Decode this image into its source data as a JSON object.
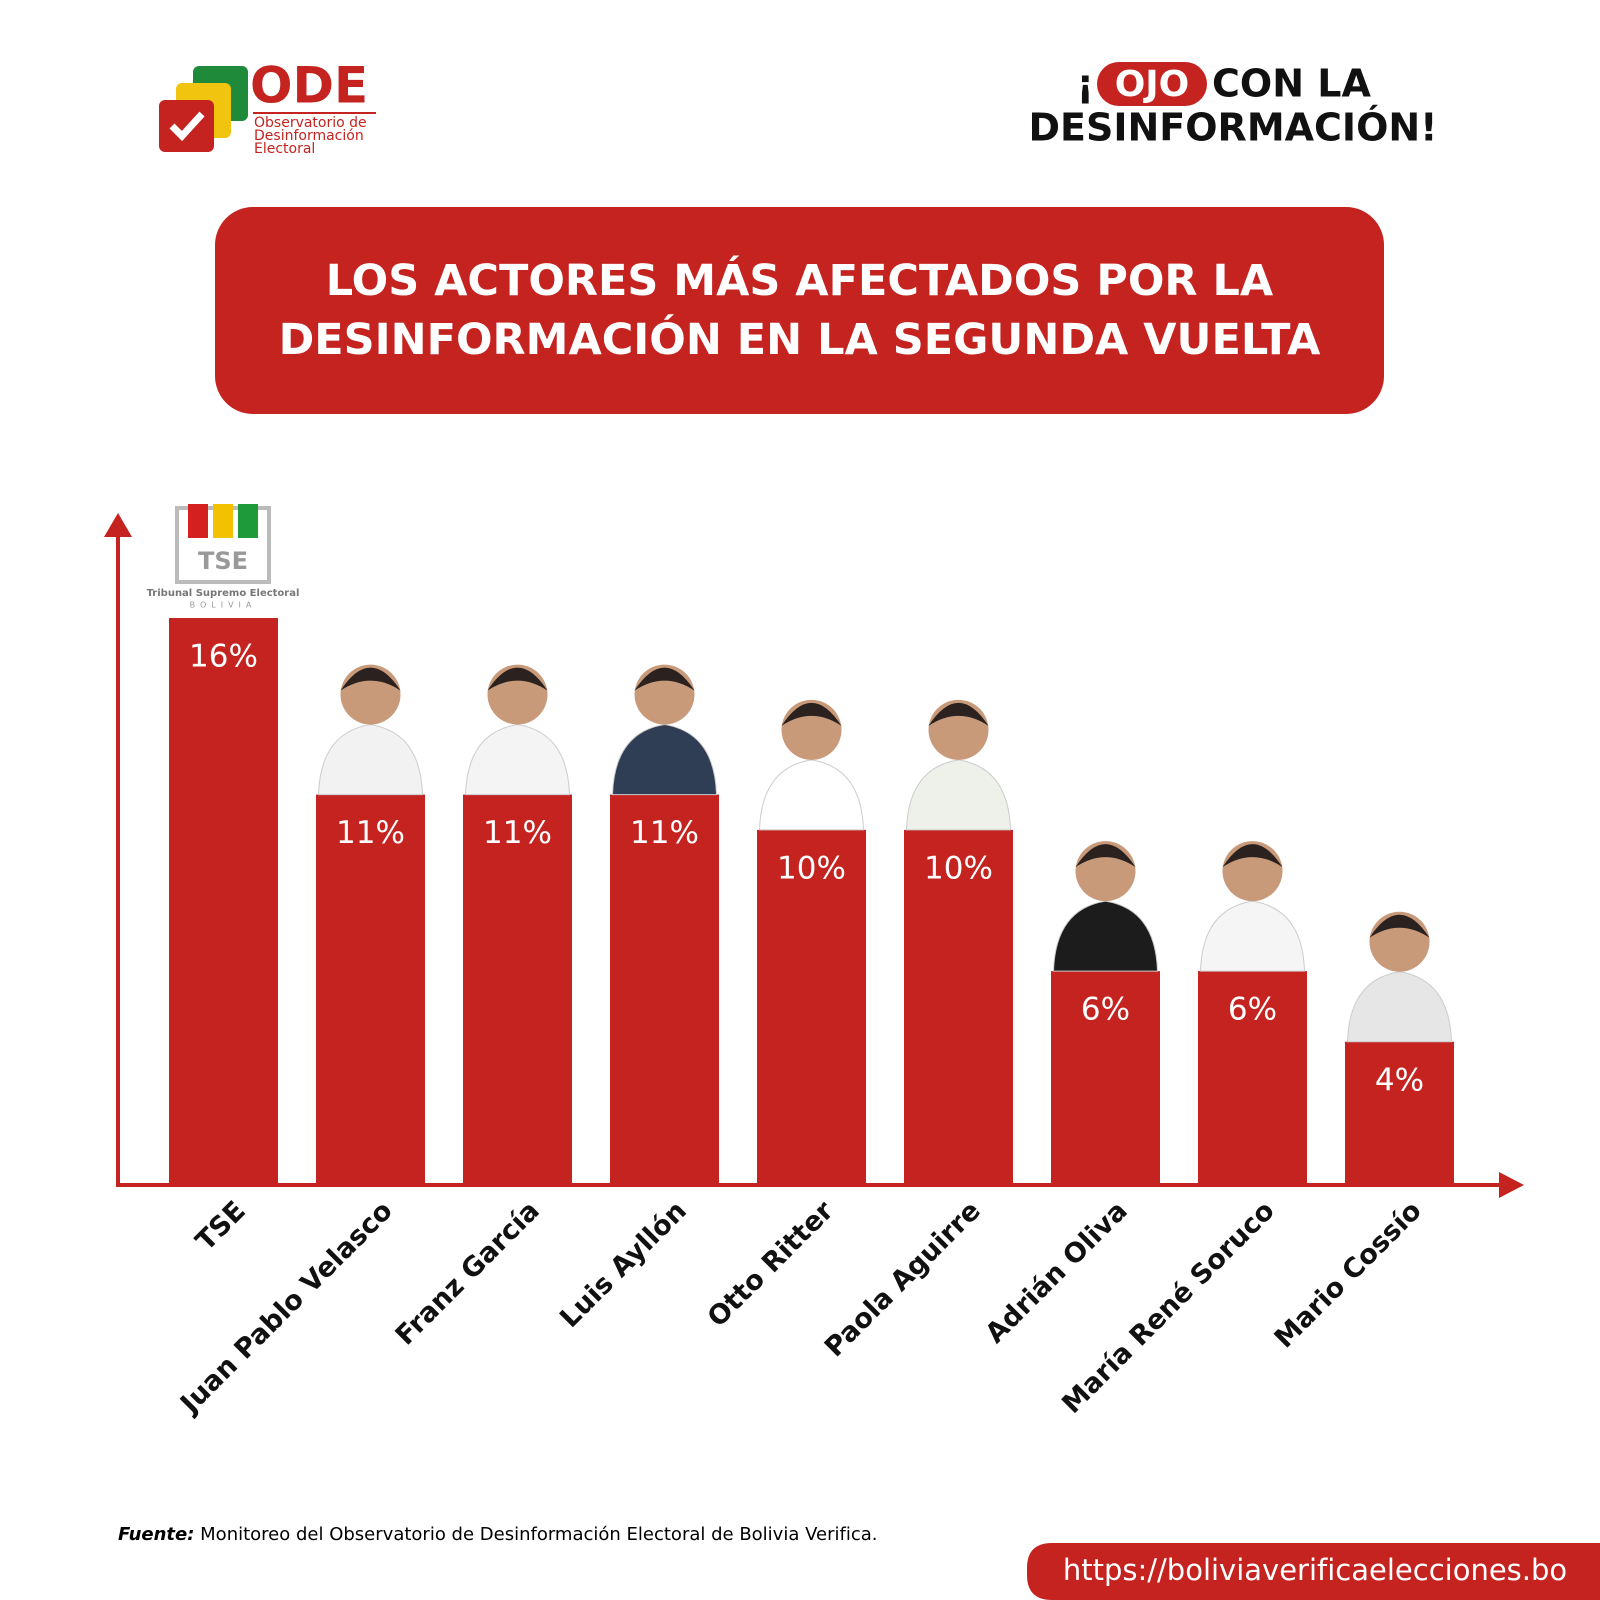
{
  "header": {
    "logo": {
      "name": "ODE",
      "subtitle_lines": [
        "Observatorio de",
        "Desinformación",
        "Electoral"
      ]
    },
    "slogan": {
      "exclamation": "¡",
      "highlight": "OJO",
      "line1": "CON LA",
      "line2": "DESINFORMACIÓN!"
    }
  },
  "chart_data": {
    "type": "bar",
    "title": "LOS ACTORES MÁS AFECTADOS POR LA DESINFORMACIÓN EN LA SEGUNDA VUELTA",
    "categories": [
      "TSE",
      "Juan Pablo Velasco",
      "Franz García",
      "Luis Ayllón",
      "Otto Ritter",
      "Paola Aguirre",
      "Adrián Oliva",
      "María René Soruco",
      "Mario Cossío"
    ],
    "values": [
      16,
      11,
      11,
      11,
      10,
      10,
      6,
      6,
      4
    ],
    "value_labels": [
      "16%",
      "11%",
      "11%",
      "11%",
      "10%",
      "10%",
      "6%",
      "6%",
      "4%"
    ],
    "color": "#c42320",
    "tse_logo": {
      "acronym": "TSE",
      "name": "Tribunal Supremo Electoral",
      "country": "BOLIVIA"
    }
  },
  "footer": {
    "source_label": "Fuente:",
    "source_text": "Monitoreo del Observatorio de Desinformación Electoral de Bolivia Verifica.",
    "url": "https://boliviaverificaelecciones.bo"
  }
}
